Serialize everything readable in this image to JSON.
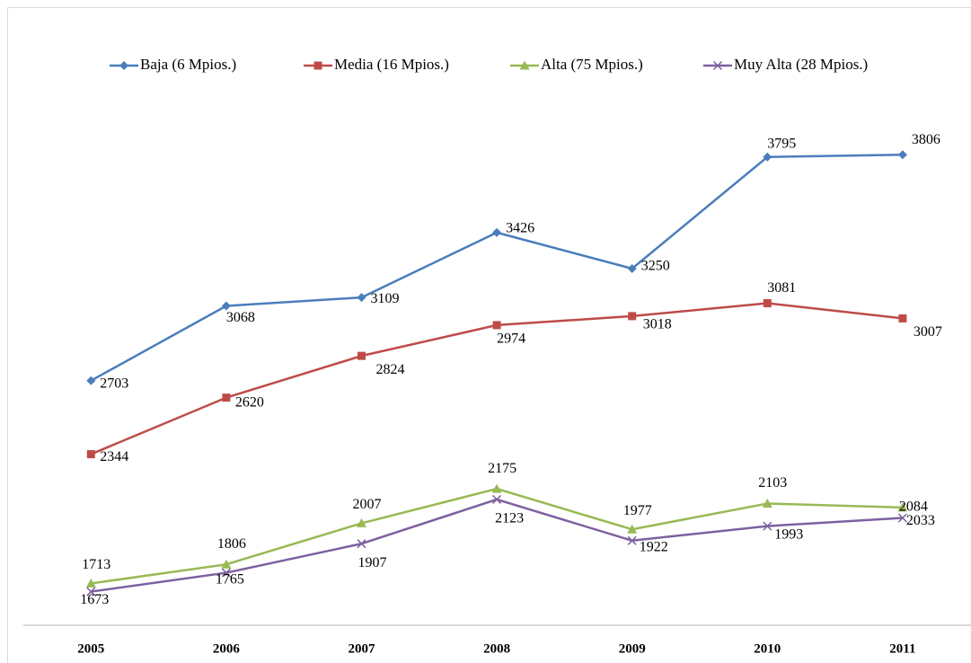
{
  "chart_data": {
    "type": "line",
    "categories": [
      "2005",
      "2006",
      "2007",
      "2008",
      "2009",
      "2010",
      "2011"
    ],
    "series": [
      {
        "name": "Baja (6 Mpios.)",
        "color": "#4a7ebb",
        "marker": "diamond",
        "values": [
          2703,
          3068,
          3109,
          3426,
          3250,
          3795,
          3806
        ]
      },
      {
        "name": "Media (16 Mpios.)",
        "color": "#be4b48",
        "marker": "square",
        "values": [
          2344,
          2620,
          2824,
          2974,
          3018,
          3081,
          3007
        ]
      },
      {
        "name": "Alta (75 Mpios.)",
        "color": "#98b954",
        "marker": "triangle",
        "values": [
          1713,
          1806,
          2007,
          2175,
          1977,
          2103,
          2084
        ]
      },
      {
        "name": "Muy Alta (28 Mpios.)",
        "color": "#7d60a0",
        "marker": "x",
        "values": [
          1673,
          1765,
          1907,
          2123,
          1922,
          1993,
          2033
        ]
      }
    ],
    "ylim": [
      1500,
      4000
    ],
    "grid": false,
    "legend": "top"
  }
}
